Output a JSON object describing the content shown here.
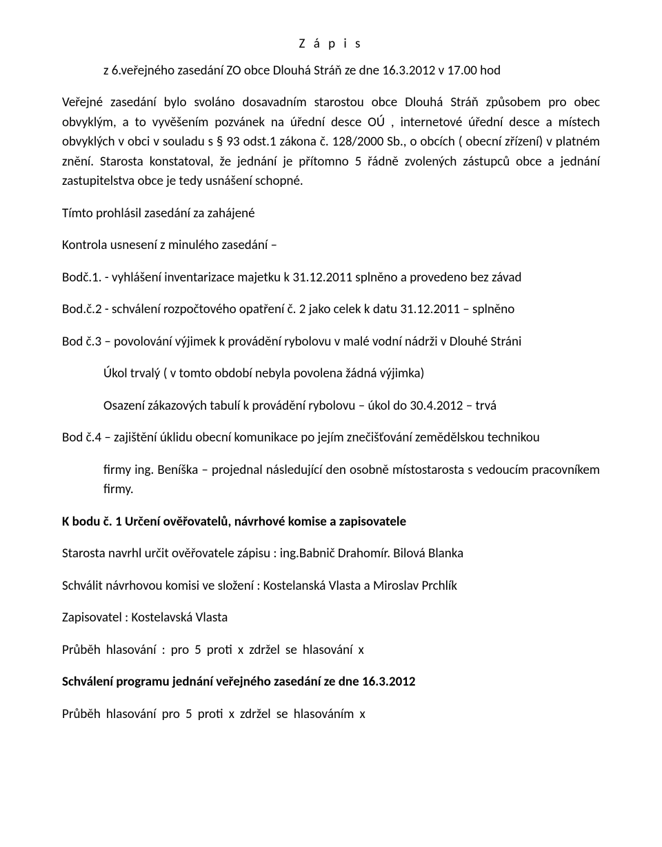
{
  "title": "Z á p i s",
  "subtitle": "z  6.veřejného zasedání ZO   obce  Dlouhá Stráň  ze dne  16.3.2012 v 17.00 hod",
  "para1": "Veřejné zasedání bylo svoláno dosavadním starostou obce  Dlouhá Stráň způsobem  pro obec obvyklým,  a to   vyvěšením  pozvánek na úřední  desce OÚ , internetové úřední desce a místech obvyklých v obci v souladu s § 93 odst.1 zákona č. 128/2000 Sb., o obcích ( obecní zřízení) v platném  znění.  Starosta konstatoval, že jednání je  přítomno  5 řádně zvolených zástupců obce  a jednání   zastupitelstva obce je tedy usnášení schopné.",
  "para2": "Tímto prohlásil zasedání za zahájené",
  "para3": "Kontrola usnesení z minulého zasedání –",
  "para4": "Bodč.1. - vyhlášení inventarizace majetku k 31.12.2011 splněno a provedeno bez závad",
  "para5": "Bod.č.2 - schválení rozpočtového opatření č. 2 jako celek k datu 31.12.2011 – splněno",
  "para6": "Bod č.3 – povolování výjimek k provádění rybolovu v malé vodní nádrži v Dlouhé Stráni",
  "para7": "Úkol trvalý ( v tomto období nebyla povolena žádná výjimka)",
  "para8": "Osazení zákazových tabulí k provádění rybolovu – úkol do 30.4.2012 – trvá",
  "para9": "Bod č.4 – zajištění úklidu obecní komunikace po jejím znečišťování zemědělskou technikou",
  "para10": "firmy ing. Beníška – projednal  následující den osobně místostarosta s vedoucím pracovníkem firmy.",
  "heading1": "K bodu č. 1 Určení ověřovatelů, návrhové komise  a zapisovatele",
  "para11": "Starosta navrhl určit ověřovatele zápisu : ing.Babnič Drahomír. Bilová Blanka",
  "para12": "Schválit  návrhovou komisi ve složení : Kostelanská Vlasta a Miroslav Prchlík",
  "para13": "Zapisovatel :   Kostelavská Vlasta",
  "voting1": "Průběh  hlasování :      pro       5             proti    x            zdržel se hlasování     x",
  "heading2": "Schválení programu jednání veřejného zasedání ze dne 16.3.2012",
  "voting2": "Průběh hlasování  pro             5           proti   x           zdržel se hlasováním   x"
}
